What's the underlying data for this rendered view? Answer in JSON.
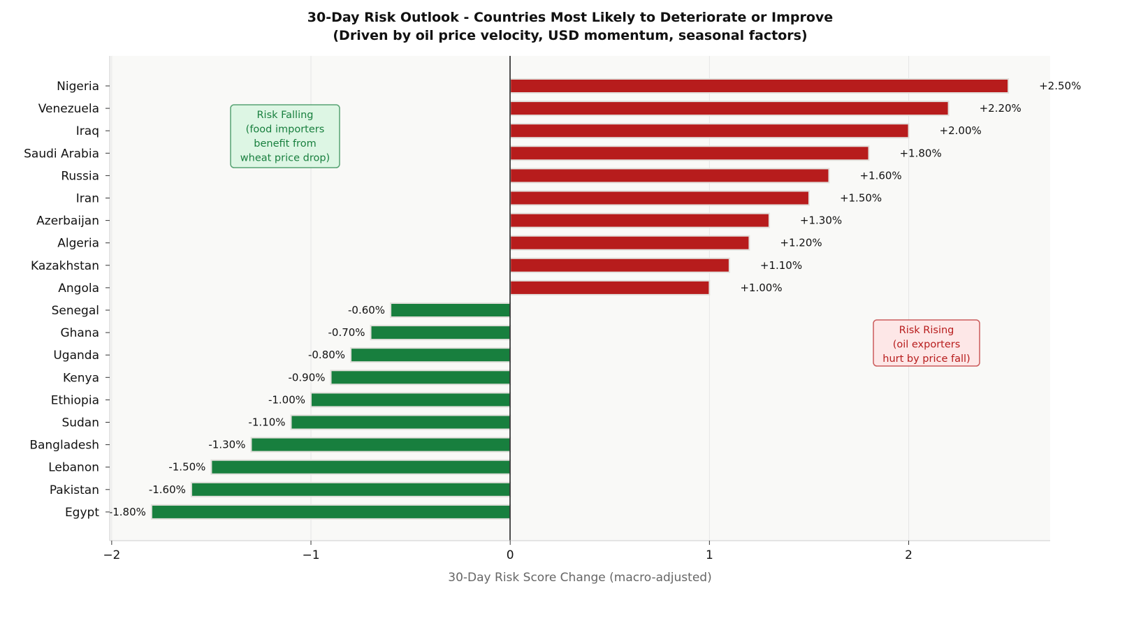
{
  "chart_data": {
    "type": "bar",
    "orientation": "horizontal",
    "title": "30-Day Risk Outlook - Countries Most Likely to Deteriorate or Improve",
    "subtitle": "(Driven by oil price velocity, USD momentum, seasonal factors)",
    "xlabel": "30-Day Risk Score Change (macro-adjusted)",
    "ylabel": "",
    "xlim": [
      -2.01,
      2.71
    ],
    "xticks": [
      -2,
      -1,
      0,
      1,
      2
    ],
    "xtick_labels": [
      "−2",
      "−1",
      "0",
      "1",
      "2"
    ],
    "grid": "vertical",
    "categories": [
      "Nigeria",
      "Venezuela",
      "Iraq",
      "Saudi Arabia",
      "Russia",
      "Iran",
      "Azerbaijan",
      "Algeria",
      "Kazakhstan",
      "Angola",
      "Senegal",
      "Ghana",
      "Uganda",
      "Kenya",
      "Ethiopia",
      "Sudan",
      "Bangladesh",
      "Lebanon",
      "Pakistan",
      "Egypt"
    ],
    "values": [
      2.5,
      2.2,
      2.0,
      1.8,
      1.6,
      1.5,
      1.3,
      1.2,
      1.1,
      1.0,
      -0.6,
      -0.7,
      -0.8,
      -0.9,
      -1.0,
      -1.1,
      -1.3,
      -1.5,
      -1.6,
      -1.8
    ],
    "data_labels": [
      "+2.50%",
      "+2.20%",
      "+2.00%",
      "+1.80%",
      "+1.60%",
      "+1.50%",
      "+1.30%",
      "+1.20%",
      "+1.10%",
      "+1.00%",
      "-0.60%",
      "-0.70%",
      "-0.80%",
      "-0.90%",
      "-1.00%",
      "-1.10%",
      "-1.30%",
      "-1.50%",
      "-1.60%",
      "-1.80%"
    ],
    "colors": {
      "positive": "#b71c1c",
      "negative": "#187f3e",
      "background": "#f9f9f7"
    },
    "annotations": [
      {
        "name": "risk-rising",
        "lines": [
          "Risk Rising",
          "(oil exporters",
          "hurt by price fall)"
        ],
        "color": "#b71c1c"
      },
      {
        "name": "risk-falling",
        "lines": [
          "Risk Falling",
          "(food importers",
          "benefit from",
          "wheat price drop)"
        ],
        "color": "#187f3e"
      }
    ]
  }
}
